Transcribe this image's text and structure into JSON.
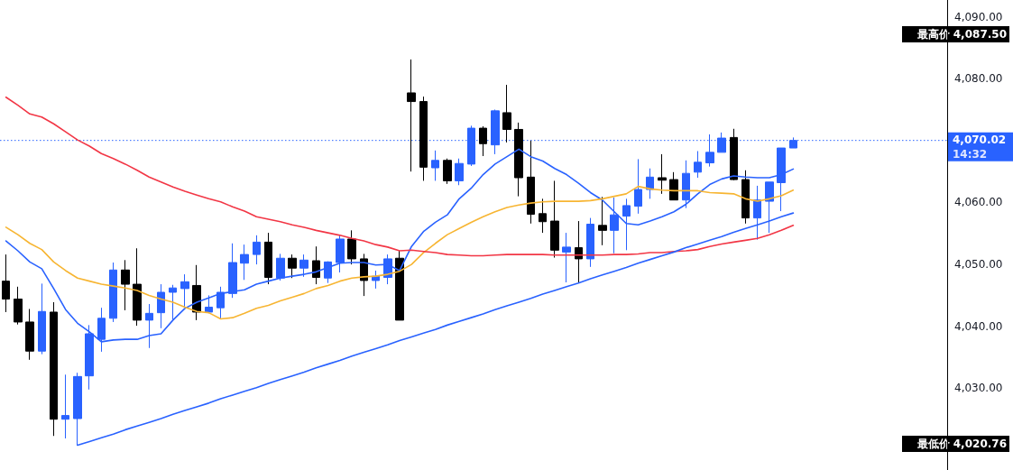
{
  "chart_data": {
    "type": "candlestick",
    "categories": [
      null,
      null,
      null,
      null,
      null,
      null,
      null,
      null,
      null,
      null,
      null,
      null,
      null,
      null,
      null,
      null,
      null,
      null,
      null,
      null,
      null,
      null,
      null,
      null,
      null,
      null,
      null,
      null,
      null,
      null,
      null,
      null,
      null,
      null,
      null,
      null,
      null,
      null,
      null,
      null,
      null,
      null,
      null,
      null,
      null,
      null,
      null,
      null,
      null,
      null,
      null,
      null,
      null,
      null,
      null,
      null,
      null,
      null,
      null,
      null,
      null,
      null,
      null,
      null,
      null,
      null,
      null
    ],
    "ohlc": [
      [
        4047.3,
        4051.6,
        4042.3,
        4044.4
      ],
      [
        4044.4,
        4046.4,
        4040.3,
        4040.7
      ],
      [
        4040.7,
        4042.8,
        4034.6,
        4036.0
      ],
      [
        4036.0,
        4046.9,
        4035.5,
        4042.4
      ],
      [
        4042.3,
        4043.9,
        4022.3,
        4025.0
      ],
      [
        4025.0,
        4032.2,
        4021.9,
        4025.6
      ],
      [
        4025.1,
        4032.5,
        4020.76,
        4031.9
      ],
      [
        4032.0,
        4040.2,
        4029.8,
        4038.8
      ],
      [
        4037.9,
        4043.0,
        4035.9,
        4041.3
      ],
      [
        4041.3,
        4050.3,
        4040.7,
        4049.1
      ],
      [
        4049.1,
        4050.7,
        4042.6,
        4046.8
      ],
      [
        4046.8,
        4052.6,
        4040.1,
        4041.0
      ],
      [
        4041.0,
        4043.6,
        4036.5,
        4042.1
      ],
      [
        4042.2,
        4046.8,
        4039.7,
        4045.5
      ],
      [
        4045.5,
        4046.7,
        4041.1,
        4046.2
      ],
      [
        4046.1,
        4048.4,
        4043.1,
        4047.2
      ],
      [
        4046.6,
        4049.9,
        4041.0,
        4042.3
      ],
      [
        4042.3,
        4045.0,
        4042.1,
        4043.1
      ],
      [
        4043.0,
        4046.4,
        4041.2,
        4045.5
      ],
      [
        4045.3,
        4053.4,
        4044.6,
        4050.3
      ],
      [
        4050.2,
        4053.2,
        4047.5,
        4051.6
      ],
      [
        4051.6,
        4054.7,
        4050.0,
        4053.6
      ],
      [
        4053.6,
        4055.1,
        4046.8,
        4047.9
      ],
      [
        4047.8,
        4051.7,
        4047.4,
        4051.0
      ],
      [
        4051.0,
        4051.6,
        4047.8,
        4049.4
      ],
      [
        4049.4,
        4051.6,
        4048.0,
        4050.7
      ],
      [
        4050.6,
        4052.9,
        4046.8,
        4047.9
      ],
      [
        4047.8,
        4050.5,
        4047.0,
        4050.4
      ],
      [
        4050.3,
        4054.7,
        4048.7,
        4054.1
      ],
      [
        4054.1,
        4055.5,
        4050.0,
        4050.9
      ],
      [
        4050.9,
        4051.7,
        4044.9,
        4047.4
      ],
      [
        4047.4,
        4049.0,
        4046.1,
        4048.1
      ],
      [
        4047.9,
        4051.6,
        4046.8,
        4050.9
      ],
      [
        4051.0,
        4052.2,
        4041.0,
        4041.0
      ],
      [
        4077.7,
        4083.1,
        4065.0,
        4076.3
      ],
      [
        4076.3,
        4077.1,
        4063.5,
        4065.7
      ],
      [
        4065.6,
        4068.4,
        4063.5,
        4066.8
      ],
      [
        4066.8,
        4067.1,
        4063.0,
        4063.5
      ],
      [
        4063.5,
        4067.1,
        4062.8,
        4066.3
      ],
      [
        4066.2,
        4072.4,
        4065.9,
        4072.0
      ],
      [
        4072.0,
        4072.3,
        4067.5,
        4069.5
      ],
      [
        4069.3,
        4075.0,
        4067.8,
        4074.8
      ],
      [
        4074.5,
        4079.0,
        4069.7,
        4071.8
      ],
      [
        4071.8,
        4072.9,
        4061.0,
        4064.0
      ],
      [
        4064.1,
        4070.0,
        4056.6,
        4058.1
      ],
      [
        4058.2,
        4060.6,
        4055.1,
        4056.9
      ],
      [
        4057.0,
        4063.5,
        4051.1,
        4052.3
      ],
      [
        4052.0,
        4055.1,
        4047.1,
        4052.8
      ],
      [
        4052.7,
        4057.0,
        4047.1,
        4050.9
      ],
      [
        4050.9,
        4057.5,
        4049.6,
        4056.5
      ],
      [
        4056.3,
        4060.9,
        4053.1,
        4055.5
      ],
      [
        4055.5,
        4060.8,
        4051.8,
        4058.0
      ],
      [
        4057.8,
        4060.6,
        4052.3,
        4059.5
      ],
      [
        4059.4,
        4067.0,
        4058.2,
        4062.1
      ],
      [
        4062.1,
        4065.5,
        4060.6,
        4064.1
      ],
      [
        4064.0,
        4067.8,
        4061.4,
        4063.6
      ],
      [
        4063.7,
        4064.9,
        4060.4,
        4060.4
      ],
      [
        4060.4,
        4066.8,
        4059.1,
        4064.7
      ],
      [
        4064.9,
        4068.3,
        4064.0,
        4066.5
      ],
      [
        4066.4,
        4071.0,
        4065.8,
        4068.1
      ],
      [
        4068.1,
        4071.3,
        4068.1,
        4070.4
      ],
      [
        4070.5,
        4071.9,
        4063.6,
        4063.7
      ],
      [
        4063.7,
        4065.2,
        4056.6,
        4057.5
      ],
      [
        4057.5,
        4062.7,
        4054.0,
        4060.4
      ],
      [
        4060.2,
        4063.3,
        4055.1,
        4063.3
      ],
      [
        4063.2,
        4068.8,
        4058.6,
        4068.8
      ],
      [
        4068.8,
        4070.5,
        4068.8,
        4070.02
      ]
    ],
    "colors": [
      "#000000",
      "#000000",
      "#000000",
      "#2962ff",
      "#000000",
      "#2962ff",
      "#2962ff",
      "#2962ff",
      "#2962ff",
      "#2962ff",
      "#000000",
      "#000000",
      "#2962ff",
      "#2962ff",
      "#2962ff",
      "#2962ff",
      "#000000",
      "#2962ff",
      "#2962ff",
      "#2962ff",
      "#2962ff",
      "#2962ff",
      "#000000",
      "#2962ff",
      "#000000",
      "#2962ff",
      "#000000",
      "#2962ff",
      "#2962ff",
      "#000000",
      "#000000",
      "#2962ff",
      "#2962ff",
      "#000000",
      "#000000",
      "#000000",
      "#2962ff",
      "#000000",
      "#2962ff",
      "#2962ff",
      "#000000",
      "#2962ff",
      "#000000",
      "#000000",
      "#000000",
      "#000000",
      "#000000",
      "#2962ff",
      "#000000",
      "#2962ff",
      "#000000",
      "#2962ff",
      "#2962ff",
      "#2962ff",
      "#2962ff",
      "#000000",
      "#000000",
      "#2962ff",
      "#2962ff",
      "#2962ff",
      "#2962ff",
      "#000000",
      "#000000",
      "#2962ff",
      "#2962ff",
      "#2962ff",
      "#2962ff"
    ],
    "series": [
      {
        "type": "line",
        "color": "#2962ff",
        "values": [
          4053.8,
          4052.2,
          4050.4,
          4049.3,
          4046.1,
          4042.7,
          4040.5,
          4039.1,
          4037.5,
          4037.8,
          4037.9,
          4037.9,
          4038.5,
          4038.8,
          4041.0,
          4042.9,
          4043.9,
          4044.6,
          4045.3,
          4045.6,
          4045.9,
          4046.8,
          4047.3,
          4047.8,
          4048.1,
          4048.4,
          4048.8,
          4049.5,
          4050.2,
          4050.3,
          4050.3,
          4049.9,
          4050.0,
          4049.0,
          4052.9,
          4055.3,
          4056.8,
          4058.0,
          4060.6,
          4062.3,
          4064.5,
          4066.2,
          4067.4,
          4068.6,
          4067.4,
          4066.7,
          4065.5,
          4064.5,
          4063.1,
          4061.6,
          4060.4,
          4058.5,
          4056.6,
          4056.4,
          4057.0,
          4057.7,
          4058.5,
          4059.7,
          4061.4,
          4062.9,
          4063.8,
          4064.3,
          4064.1,
          4064.0,
          4064.0,
          4064.5,
          4065.4
        ]
      },
      {
        "type": "line",
        "color": "#f7b532",
        "values": [
          4056.0,
          4054.8,
          4053.4,
          4052.4,
          4050.4,
          4049.0,
          4047.8,
          4047.3,
          4046.8,
          4046.5,
          4046.2,
          4045.8,
          4045.0,
          4044.4,
          4043.9,
          4043.1,
          4042.4,
          4042.2,
          4041.2,
          4041.4,
          4042.1,
          4042.9,
          4043.4,
          4044.1,
          4044.7,
          4045.3,
          4046.1,
          4046.6,
          4047.3,
          4047.8,
          4048.0,
          4048.1,
          4048.4,
          4048.9,
          4050.0,
          4051.9,
          4053.4,
          4054.8,
          4055.8,
          4056.8,
          4057.7,
          4058.5,
          4059.2,
          4059.6,
          4059.9,
          4060.1,
          4060.2,
          4060.2,
          4060.2,
          4060.3,
          4060.6,
          4061.0,
          4061.4,
          4062.6,
          4062.2,
          4062.0,
          4061.9,
          4061.9,
          4061.9,
          4061.6,
          4061.5,
          4061.4,
          4060.6,
          4060.2,
          4060.6,
          4061.1,
          4062.0
        ]
      },
      {
        "type": "line",
        "color": "#f23645",
        "values": [
          4077.0,
          4075.7,
          4074.3,
          4073.8,
          4072.7,
          4071.4,
          4070.1,
          4069.1,
          4067.9,
          4067.1,
          4066.2,
          4065.2,
          4064.1,
          4063.3,
          4062.5,
          4061.8,
          4061.2,
          4060.6,
          4060.1,
          4059.3,
          4058.6,
          4057.7,
          4057.3,
          4056.9,
          4056.4,
          4056.0,
          4055.5,
          4055.1,
          4054.7,
          4054.2,
          4053.8,
          4053.2,
          4052.8,
          4052.2,
          4052.3,
          4052.1,
          4051.9,
          4051.6,
          4051.5,
          4051.4,
          4051.4,
          4051.5,
          4051.6,
          4051.6,
          4051.6,
          4051.6,
          4051.5,
          4051.5,
          4051.5,
          4051.5,
          4051.5,
          4051.6,
          4051.6,
          4051.7,
          4051.9,
          4051.9,
          4052.1,
          4052.2,
          4052.4,
          4052.9,
          4053.3,
          4053.6,
          4053.9,
          4054.2,
          4054.8,
          4055.5,
          4056.3
        ]
      },
      {
        "type": "line",
        "color": "#2962ff",
        "values": [
          null,
          null,
          null,
          null,
          null,
          null,
          4020.8,
          4021.4,
          4022.0,
          4022.6,
          4023.3,
          4023.9,
          4024.5,
          4025.1,
          4025.8,
          4026.4,
          4027.0,
          4027.6,
          4028.3,
          4028.9,
          4029.5,
          4030.1,
          4030.8,
          4031.4,
          4032.0,
          4032.6,
          4033.3,
          4033.9,
          4034.5,
          4035.2,
          4035.8,
          4036.4,
          4037.0,
          4037.7,
          4038.3,
          4038.9,
          4039.5,
          4040.2,
          4040.8,
          4041.4,
          4042.0,
          4042.7,
          4043.3,
          4043.9,
          4044.5,
          4045.2,
          4045.8,
          4046.4,
          4047.0,
          4047.7,
          4048.3,
          4048.9,
          4049.5,
          4050.2,
          4050.8,
          4051.4,
          4052.0,
          4052.7,
          4053.3,
          4053.9,
          4054.5,
          4055.2,
          4055.8,
          4056.4,
          4057.0,
          4057.7,
          4058.3
        ]
      }
    ],
    "ylim": [
      4016.8,
      4092.7
    ],
    "yticks": [
      {
        "value": 4030,
        "label": "4,030.00"
      },
      {
        "value": 4040,
        "label": "4,040.00"
      },
      {
        "value": 4050,
        "label": "4,050.00"
      },
      {
        "value": 4060,
        "label": "4,060.00"
      },
      {
        "value": 4080,
        "label": "4,080.00"
      },
      {
        "value": 4090,
        "label": "4,090.00"
      }
    ],
    "tick_labels": "y",
    "grid": false,
    "marker": "none",
    "ref_lines": [
      {
        "axis": "y",
        "value": 4070.02,
        "label": "4,070.02",
        "color": "#2962ff",
        "line_style": "dotted"
      }
    ],
    "annotations": [
      "最高价 4,087.50",
      "14:32",
      "最低价 4,020.76"
    ]
  }
}
